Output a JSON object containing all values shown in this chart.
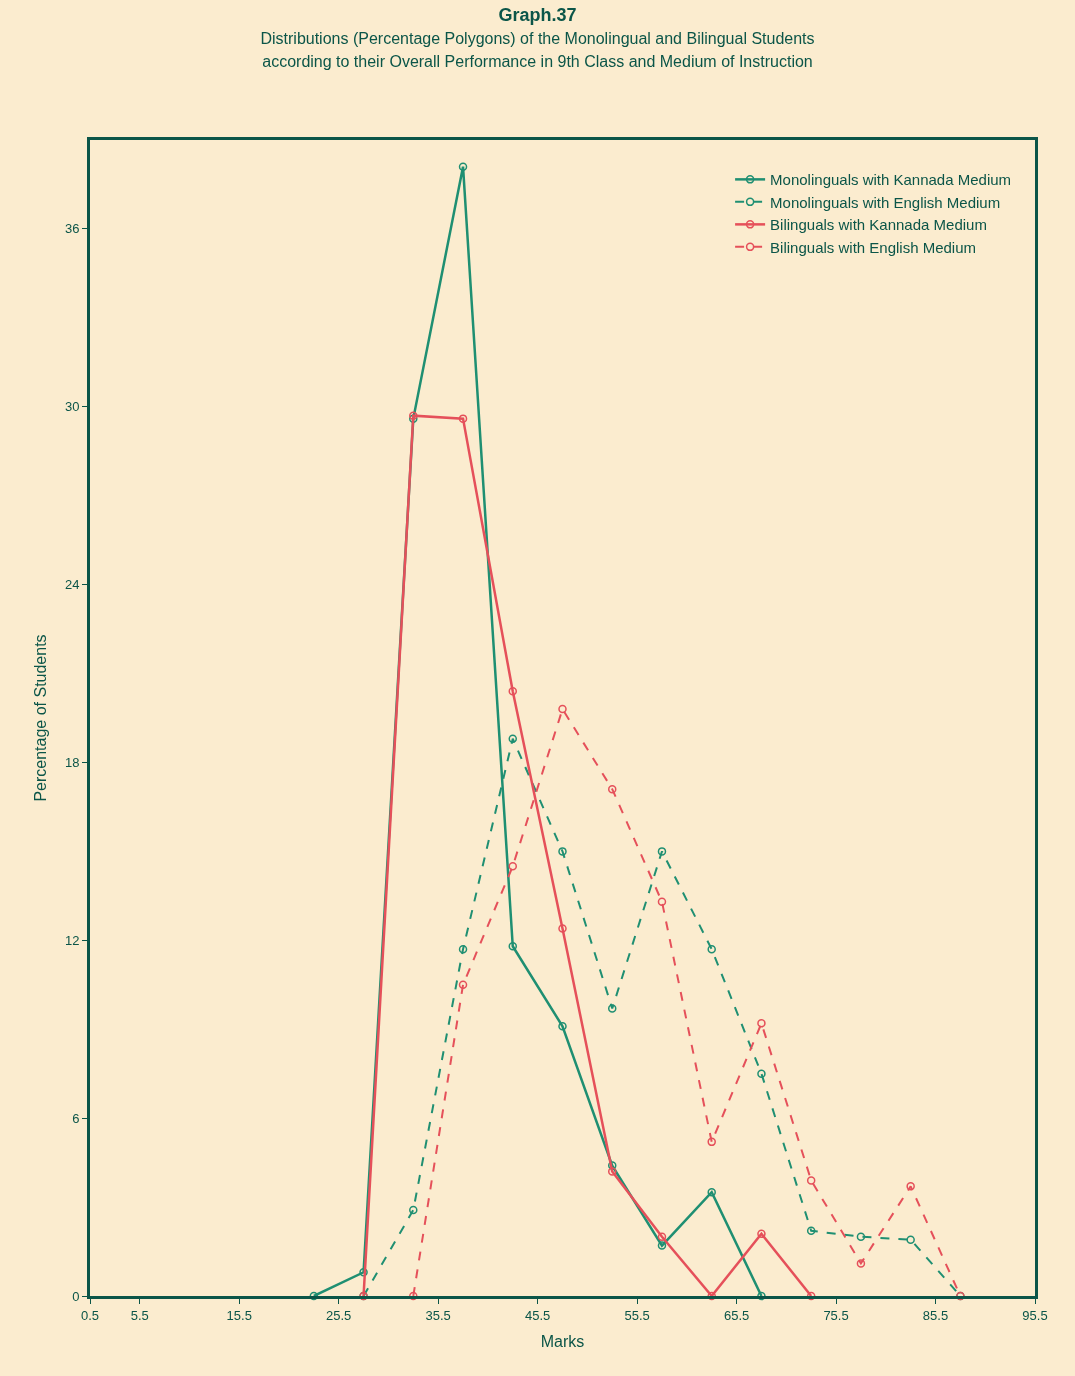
{
  "chart_data": {
    "type": "line",
    "title": "Graph.37",
    "subtitle": "Distributions (Percentage Polygons) of the Monolingual and Bilingual Students\naccording to their Overall Performance in 9th Class and Medium of Instruction",
    "xlabel": "Marks",
    "ylabel": "Percentage of Students",
    "xlim": [
      0.5,
      95.5
    ],
    "xticks": [
      0.5,
      5.5,
      15.5,
      25.5,
      35.5,
      45.5,
      55.5,
      65.5,
      75.5,
      85.5,
      95.5
    ],
    "ylim": [
      0,
      39
    ],
    "yticks": [
      0,
      6,
      12,
      18,
      24,
      30,
      36
    ],
    "grid": false,
    "legend": "top right",
    "marker": "circle",
    "series": [
      {
        "name": "Monolinguals with Kannada Medium",
        "color": "#1f8f72",
        "line_style": "solid",
        "x": [
          23,
          28,
          33,
          38,
          43,
          48,
          53,
          58,
          63,
          68
        ],
        "values": [
          0,
          0.8,
          29.6,
          38.1,
          11.8,
          9.1,
          4.4,
          1.7,
          3.5,
          0
        ]
      },
      {
        "name": "Monolinguals with English Medium",
        "color": "#1f8f72",
        "line_style": "dashed",
        "x": [
          28,
          33,
          38,
          43,
          48,
          53,
          58,
          63,
          68,
          73,
          78,
          83,
          88
        ],
        "values": [
          0,
          2.9,
          11.7,
          18.8,
          15,
          9.7,
          15,
          11.7,
          7.5,
          2.2,
          2.0,
          1.9,
          0
        ]
      },
      {
        "name": "Bilinguals with Kannada Medium",
        "color": "#e5505a",
        "line_style": "solid",
        "x": [
          28,
          33,
          38,
          43,
          48,
          53,
          58,
          63,
          68,
          73
        ],
        "values": [
          0,
          29.7,
          29.6,
          20.4,
          12.4,
          4.2,
          2,
          0,
          2.1,
          0
        ]
      },
      {
        "name": "Bilinguals with English Medium",
        "color": "#e5505a",
        "line_style": "dashed",
        "x": [
          33,
          38,
          43,
          48,
          53,
          58,
          63,
          68,
          73,
          78,
          83,
          88
        ],
        "values": [
          0,
          10.5,
          14.5,
          19.8,
          17.1,
          13.3,
          5.2,
          9.2,
          3.9,
          1.1,
          3.7,
          0
        ]
      }
    ]
  }
}
